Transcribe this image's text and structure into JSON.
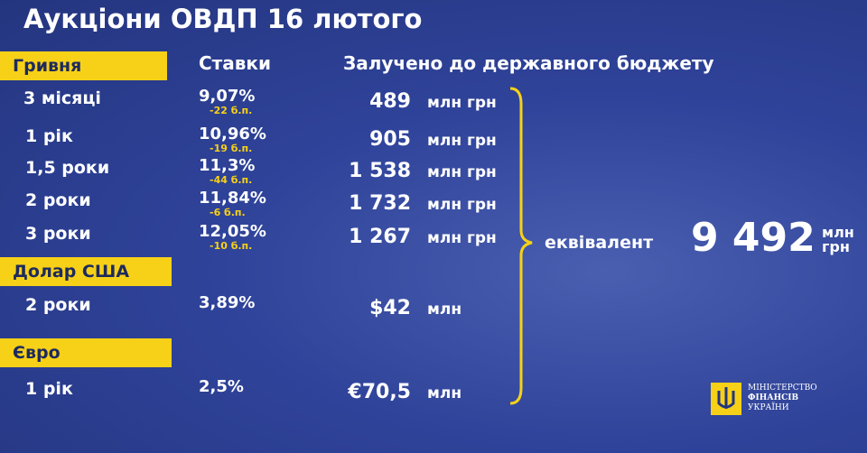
{
  "title": "Аукціони ОВДП 16 лютого",
  "headers": {
    "rates": "Ставки",
    "raised": "Залучено до державного бюджету"
  },
  "groups": [
    {
      "name": "Гривня",
      "rows": [
        {
          "term": "3 місяці",
          "rate": "9,07%",
          "change": "-22 б.п.",
          "amount": "489",
          "unit": "млн грн"
        },
        {
          "term": "1 рік",
          "rate": "10,96%",
          "change": "-19 б.п.",
          "amount": "905",
          "unit": "млн грн"
        },
        {
          "term": "1,5 роки",
          "rate": "11,3%",
          "change": "-44 б.п.",
          "amount": "1 538",
          "unit": "млн грн"
        },
        {
          "term": "2 роки",
          "rate": "11,84%",
          "change": "-6 б.п.",
          "amount": "1 732",
          "unit": "млн грн"
        },
        {
          "term": "3 роки",
          "rate": "12,05%",
          "change": "-10 б.п.",
          "amount": "1 267",
          "unit": "млн грн"
        }
      ]
    },
    {
      "name": "Долар США",
      "rows": [
        {
          "term": "2 роки",
          "rate": "3,89%",
          "amount": "$42",
          "unit": "млн"
        }
      ]
    },
    {
      "name": "Євро",
      "rows": [
        {
          "term": "1 рік",
          "rate": "2,5%",
          "amount": "€70,5",
          "unit": "млн"
        }
      ]
    }
  ],
  "total": {
    "label": "еквівалент",
    "value": "9 492",
    "unit_top": "млн",
    "unit_bottom": "грн"
  },
  "logo": {
    "line1": "МІНІСТЕРСТВО",
    "line2": "ФІНАНСІВ",
    "line3": "УКРАЇНИ"
  }
}
